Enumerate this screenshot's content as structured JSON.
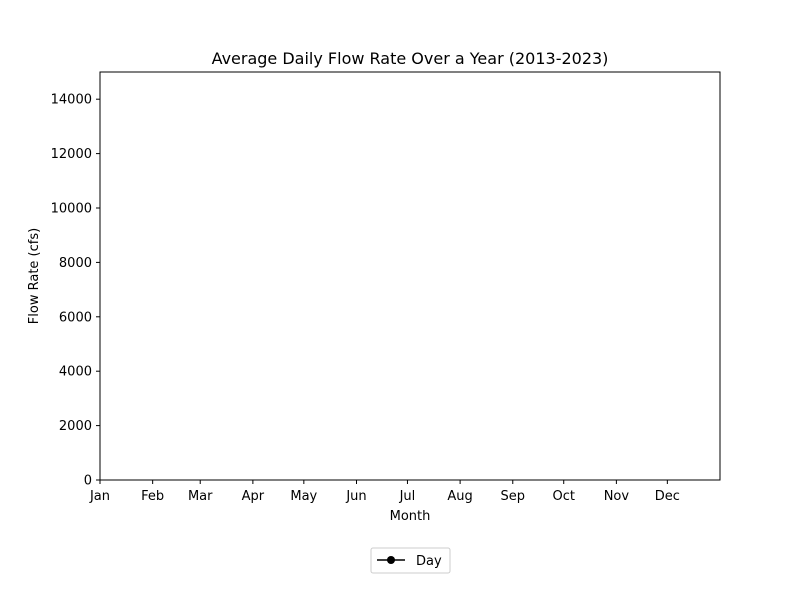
{
  "chart_data": {
    "type": "line",
    "title": "Average Daily Flow Rate Over a Year (2013-2023)",
    "xlabel": "Month",
    "ylabel": "Flow Rate (cfs)",
    "x_ticks": [
      "Jan",
      "Feb",
      "Mar",
      "Apr",
      "May",
      "Jun",
      "Jul",
      "Aug",
      "Sep",
      "Oct",
      "Nov",
      "Dec"
    ],
    "x_tick_days": [
      1,
      32,
      60,
      91,
      121,
      152,
      182,
      213,
      244,
      274,
      305,
      335
    ],
    "xlim": [
      1,
      366
    ],
    "y_ticks": [
      0,
      2000,
      4000,
      6000,
      8000,
      10000,
      12000,
      14000
    ],
    "ylim": [
      0,
      15000
    ],
    "grid": false,
    "legend_placement": "bottom-center",
    "series": [
      {
        "name": "Day",
        "color": "#000000",
        "marker": "circle",
        "x": [],
        "y": []
      }
    ]
  }
}
